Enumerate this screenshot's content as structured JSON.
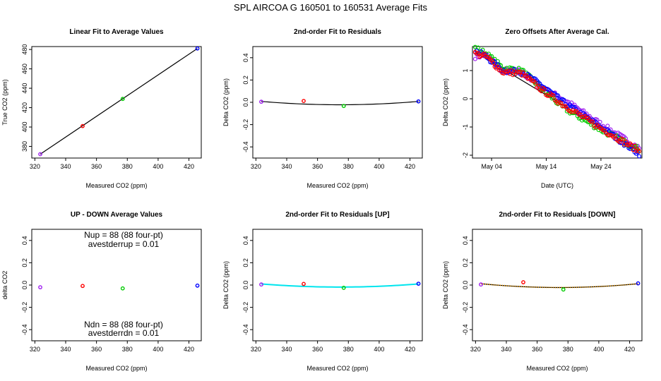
{
  "title": "SPL   AIRCOA G   160501 to 160531   Average Fits",
  "colors": {
    "red": "#ff0000",
    "green": "#00cc00",
    "blue": "#0000ff",
    "purple": "#a020f0",
    "cyan": "#00e5ee",
    "orange": "#ffa500",
    "black": "#000000"
  },
  "chart_data": [
    {
      "type": "scatter",
      "title": "Linear Fit to Average Values",
      "xlabel": "Measured CO2 (ppm)",
      "ylabel": "True CO2 (ppm)",
      "xlim": [
        318,
        428
      ],
      "ylim": [
        368,
        483
      ],
      "xticks": [
        320,
        340,
        360,
        380,
        400,
        420
      ],
      "yticks": [
        380,
        400,
        420,
        440,
        460,
        480
      ],
      "series": [
        {
          "color": "purple",
          "x": [
            323.5
          ],
          "y": [
            372
          ]
        },
        {
          "color": "red",
          "x": [
            351
          ],
          "y": [
            401
          ]
        },
        {
          "color": "green",
          "x": [
            377
          ],
          "y": [
            429
          ]
        },
        {
          "color": "blue",
          "x": [
            425.5
          ],
          "y": [
            481
          ]
        }
      ],
      "lines": [
        {
          "color": "black",
          "x": [
            323.5,
            425.5
          ],
          "y": [
            372,
            481
          ]
        }
      ]
    },
    {
      "type": "scatter",
      "title": "2nd-order Fit to Residuals",
      "xlabel": "Measured CO2 (ppm)",
      "ylabel": "Delta CO2 (ppm)",
      "xlim": [
        318,
        428
      ],
      "ylim": [
        -0.5,
        0.5
      ],
      "xticks": [
        320,
        340,
        360,
        380,
        400,
        420
      ],
      "yticks": [
        -0.4,
        -0.2,
        0.0,
        0.2,
        0.4
      ],
      "ytick_labels": [
        "-0.4",
        "-0.2",
        "0.0",
        "0.2",
        "0.4"
      ],
      "series": [
        {
          "color": "purple",
          "x": [
            323.5
          ],
          "y": [
            0.005
          ]
        },
        {
          "color": "red",
          "x": [
            351
          ],
          "y": [
            0.012
          ]
        },
        {
          "color": "green",
          "x": [
            377
          ],
          "y": [
            -0.033
          ]
        },
        {
          "color": "blue",
          "x": [
            425.5
          ],
          "y": [
            0.008
          ]
        }
      ],
      "lines": [
        {
          "color": "black",
          "quad": [
            323.5,
            425.5,
            0.008,
            -0.022,
            374.5
          ]
        }
      ]
    },
    {
      "type": "scatter",
      "title": "Zero Offsets After Average Cal.",
      "xlabel": "Date (UTC)",
      "ylabel": "Delta CO2 (ppm)",
      "xlim": [
        0.5,
        31.5
      ],
      "ylim": [
        -2.1,
        1.85
      ],
      "xticks": [
        4,
        14,
        24
      ],
      "xtick_labels": [
        "May 04",
        "May 14",
        "May 24"
      ],
      "yticks": [
        -2,
        -1,
        0,
        1
      ],
      "yticks_labels": [
        "-2",
        "-1",
        "0",
        "1"
      ],
      "series": [
        {
          "color": "purple",
          "trend": [
            1.5,
            1.55,
            1.0,
            0.95,
            0.4,
            0.0,
            -0.9,
            -1.75
          ],
          "trend_x": [
            1,
            3,
            6,
            9.5,
            13,
            17,
            24,
            31
          ]
        },
        {
          "color": "green",
          "trend": [
            1.8,
            1.6,
            1.1,
            1.0,
            0.4,
            -0.3,
            -1.1,
            -1.8
          ],
          "trend_x": [
            1,
            3,
            6,
            9.5,
            13,
            17,
            24,
            31
          ]
        },
        {
          "color": "blue",
          "trend": [
            1.7,
            1.5,
            1.0,
            0.95,
            0.5,
            -0.1,
            -1.0,
            -1.95
          ],
          "trend_x": [
            1,
            3,
            6,
            9.5,
            13,
            17,
            24,
            31
          ]
        },
        {
          "color": "red",
          "trend": [
            1.6,
            1.5,
            0.95,
            0.9,
            0.35,
            -0.2,
            -1.05,
            -1.85
          ],
          "trend_x": [
            1,
            3,
            6,
            9.5,
            13,
            17,
            24,
            31
          ]
        }
      ],
      "lines": [
        {
          "color": "black",
          "x": [
            1,
            31
          ],
          "y": [
            1.65,
            -1.85
          ]
        }
      ]
    },
    {
      "type": "scatter",
      "title": "UP - DOWN Average Values",
      "xlabel": "Measured CO2 (ppm)",
      "ylabel": "delta CO2",
      "xlim": [
        318,
        428
      ],
      "ylim": [
        -0.5,
        0.5
      ],
      "xticks": [
        320,
        340,
        360,
        380,
        400,
        420
      ],
      "yticks": [
        -0.4,
        -0.2,
        0.0,
        0.2,
        0.4
      ],
      "ytick_labels": [
        "-0.4",
        "-0.2",
        "0.0",
        "0.2",
        "0.4"
      ],
      "series": [
        {
          "color": "purple",
          "x": [
            323.5
          ],
          "y": [
            -0.02
          ]
        },
        {
          "color": "red",
          "x": [
            351
          ],
          "y": [
            -0.008
          ]
        },
        {
          "color": "green",
          "x": [
            377
          ],
          "y": [
            -0.03
          ]
        },
        {
          "color": "blue",
          "x": [
            425.5
          ],
          "y": [
            -0.005
          ]
        }
      ],
      "annotations": [
        {
          "text": "Nup = 88 (88 four-pt)",
          "pos": "top"
        },
        {
          "text": "avestderrup =  0.01",
          "pos": "top2"
        },
        {
          "text": "Ndn = 88 (88 four-pt)",
          "pos": "bottom"
        },
        {
          "text": "avestderrdn =  0.01",
          "pos": "bottom2"
        }
      ]
    },
    {
      "type": "scatter",
      "title": "2nd-order Fit to Residuals [UP]",
      "xlabel": "Measured CO2 (ppm)",
      "ylabel": "Delta CO2 (ppm)",
      "xlim": [
        318,
        428
      ],
      "ylim": [
        -0.5,
        0.5
      ],
      "xticks": [
        320,
        340,
        360,
        380,
        400,
        420
      ],
      "yticks": [
        -0.4,
        -0.2,
        0.0,
        0.2,
        0.4
      ],
      "ytick_labels": [
        "-0.4",
        "-0.2",
        "0.0",
        "0.2",
        "0.4"
      ],
      "series": [
        {
          "color": "purple",
          "x": [
            323.5
          ],
          "y": [
            0.005
          ]
        },
        {
          "color": "red",
          "x": [
            351
          ],
          "y": [
            0.01
          ]
        },
        {
          "color": "green",
          "x": [
            377
          ],
          "y": [
            -0.025
          ]
        },
        {
          "color": "blue",
          "x": [
            425.5
          ],
          "y": [
            0.012
          ]
        }
      ],
      "lines": [
        {
          "color": "black",
          "quad": [
            323.5,
            425.5,
            0.01,
            -0.018,
            374.5
          ]
        },
        {
          "color": "cyan",
          "quad": [
            323.5,
            425.5,
            0.01,
            -0.018,
            374.5
          ]
        }
      ]
    },
    {
      "type": "scatter",
      "title": "2nd-order Fit to Residuals [DOWN]",
      "xlabel": "Measured CO2 (ppm)",
      "ylabel": "Delta CO2 (ppm)",
      "xlim": [
        318,
        428
      ],
      "ylim": [
        -0.5,
        0.5
      ],
      "xticks": [
        320,
        340,
        360,
        380,
        400,
        420
      ],
      "yticks": [
        -0.4,
        -0.2,
        0.0,
        0.2,
        0.4
      ],
      "ytick_labels": [
        "-0.4",
        "-0.2",
        "0.0",
        "0.2",
        "0.4"
      ],
      "series": [
        {
          "color": "purple",
          "x": [
            323.5
          ],
          "y": [
            0.005
          ]
        },
        {
          "color": "red",
          "x": [
            351
          ],
          "y": [
            0.025
          ]
        },
        {
          "color": "green",
          "x": [
            377
          ],
          "y": [
            -0.04
          ]
        },
        {
          "color": "blue",
          "x": [
            425.5
          ],
          "y": [
            0.015
          ]
        }
      ],
      "lines": [
        {
          "color": "black",
          "quad": [
            323.5,
            425.5,
            0.012,
            -0.022,
            374.5
          ]
        },
        {
          "color": "orange",
          "quad": [
            323.5,
            425.5,
            0.012,
            -0.022,
            374.5
          ],
          "dotted": true
        }
      ]
    }
  ]
}
